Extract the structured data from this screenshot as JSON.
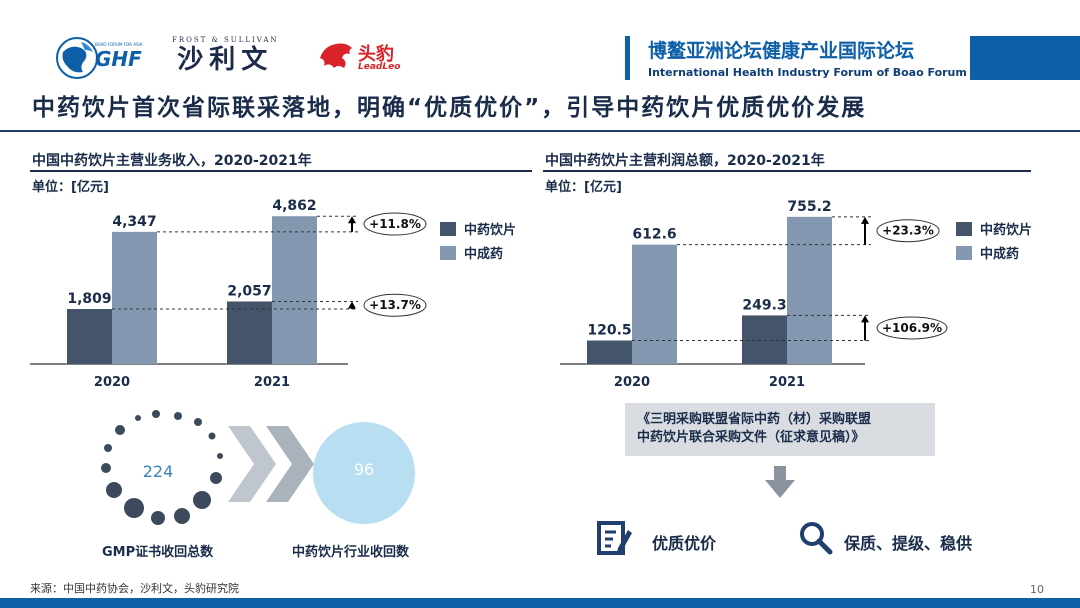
{
  "header": {
    "ghf_logo_text": "GHF",
    "ghf_logo_small": "BOAO FORUM FOR ASIA",
    "fs_logo_top": "FROST & SULLIVAN",
    "fs_logo_main": "沙利文",
    "leadleo_cn": "头豹",
    "leadleo_en": "LeadLeo",
    "forum_cn": "博鳌亚洲论坛健康产业国际论坛",
    "forum_en": "International Health Industry Forum of Boao Forum for Asia"
  },
  "page_title": "中药饮片首次省际联采落地，明确“优质优价”，引导中药饮片优质优价发展",
  "left_chart": {
    "title": "中国中药饮片主营业务收入，2020-2021年",
    "unit": "单位：[亿元]"
  },
  "right_chart": {
    "title": "中国中药饮片主营利润总额，2020-2021年",
    "unit": "单位：[亿元]"
  },
  "chart_data": [
    {
      "type": "bar",
      "title": "中国中药饮片主营业务收入，2020-2021年",
      "unit": "单位：[亿元]",
      "categories": [
        "2020",
        "2021"
      ],
      "series": [
        {
          "name": "中药饮片",
          "values": [
            1809,
            2057
          ],
          "labels": [
            "1,809",
            "2,057"
          ],
          "color": "#44546a"
        },
        {
          "name": "中成药",
          "values": [
            4347,
            4862
          ],
          "labels": [
            "4,347",
            "4,862"
          ],
          "color": "#8497b0"
        }
      ],
      "growth_labels": [
        "+11.8%",
        "+13.7%"
      ],
      "legend_position": "right",
      "ylim": [
        0,
        5000
      ]
    },
    {
      "type": "bar",
      "title": "中国中药饮片主营利润总额，2020-2021年",
      "unit": "单位：[亿元]",
      "categories": [
        "2020",
        "2021"
      ],
      "series": [
        {
          "name": "中药饮片",
          "values": [
            120.5,
            249.3
          ],
          "labels": [
            "120.5",
            "249.3"
          ],
          "color": "#44546a"
        },
        {
          "name": "中成药",
          "values": [
            612.6,
            755.2
          ],
          "labels": [
            "612.6",
            "755.2"
          ],
          "color": "#8497b0"
        }
      ],
      "growth_labels": [
        "+23.3%",
        "+106.9%"
      ],
      "legend_position": "right",
      "ylim": [
        0,
        780
      ]
    }
  ],
  "gmp": {
    "count": "224",
    "caption": "GMP证书收回总数"
  },
  "industry": {
    "count": "96",
    "caption": "中药饮片行业收回数"
  },
  "document": {
    "line1": "《三明采购联盟省际中药（材）采购联盟",
    "line2": "中药饮片联合采购文件（征求意见稿）》"
  },
  "features": [
    {
      "icon": "document-edit-icon",
      "label": "优质优价"
    },
    {
      "icon": "magnifier-icon",
      "label": "保质、提级、稳供"
    }
  ],
  "footer": {
    "source": "来源：中国中药协会，沙利文，头豹研究院",
    "page_number": "10"
  },
  "colors": {
    "brand_blue": "#0d5fa8",
    "dark_bar": "#44546a",
    "light_bar": "#8497b0"
  }
}
